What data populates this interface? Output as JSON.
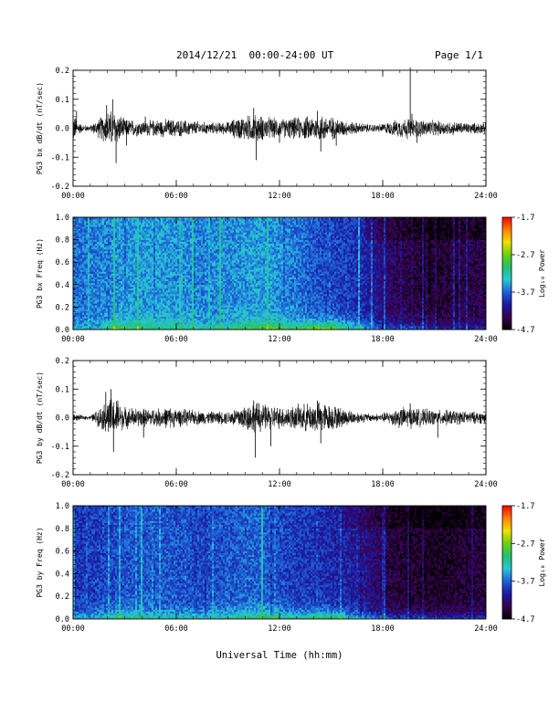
{
  "header": {
    "title": "2014/12/21  00:00-24:00 UT",
    "page": "Page 1/1"
  },
  "colors": {
    "background": "#ffffff",
    "trace": "#000000",
    "colormap": [
      "#000000",
      "#3a0050",
      "#1a1aa0",
      "#1e5fd8",
      "#28c8d8",
      "#20c070",
      "#6ad010",
      "#f0e000",
      "#ff8000",
      "#ff0000"
    ]
  },
  "x_axis": {
    "ticks": [
      0,
      6,
      12,
      18,
      24
    ],
    "tick_labels": [
      "00:00",
      "06:00",
      "12:00",
      "18:00",
      "24:00"
    ],
    "label": "Universal Time (hh:mm)"
  },
  "colorbar": {
    "tick_labels": [
      "-1.7",
      "-2.7",
      "-3.7",
      "-4.7"
    ],
    "tick_values": [
      -1.7,
      -2.7,
      -3.7,
      -4.7
    ],
    "range": [
      -4.7,
      -1.7
    ],
    "label": "Log₁₀ Power"
  },
  "chart_data": [
    {
      "type": "line",
      "ylabel": "PG3 bx dB/dt (nT/sec)",
      "ylim": [
        -0.2,
        0.2
      ],
      "yticks": [
        -0.2,
        -0.1,
        0.0,
        0.1,
        0.2
      ],
      "ytick_labels": [
        "-0.2",
        "-0.1",
        "0.0",
        "0.1",
        "0.2"
      ],
      "xlim": [
        0,
        24
      ],
      "envelope": {
        "hours": [
          0,
          0.5,
          1.0,
          1.9,
          2.1,
          2.5,
          3.0,
          4.0,
          5.0,
          5.5,
          6.0,
          7.0,
          8.0,
          9.0,
          9.5,
          10.5,
          11.0,
          12.0,
          13.0,
          14.0,
          14.5,
          15.5,
          16.0,
          17.0,
          17.5,
          18.0,
          19.0,
          19.5,
          20.0,
          21.0,
          22.0,
          23.0,
          24.0
        ],
        "amplitude": [
          0.045,
          0.012,
          0.01,
          0.05,
          0.06,
          0.055,
          0.03,
          0.025,
          0.028,
          0.03,
          0.028,
          0.025,
          0.018,
          0.02,
          0.035,
          0.045,
          0.04,
          0.03,
          0.035,
          0.04,
          0.045,
          0.03,
          0.022,
          0.015,
          0.012,
          0.015,
          0.03,
          0.035,
          0.03,
          0.025,
          0.022,
          0.018,
          0.018
        ]
      },
      "spikes": [
        {
          "hour": 0.2,
          "value": 0.06
        },
        {
          "hour": 1.95,
          "value": 0.08
        },
        {
          "hour": 2.3,
          "value": 0.1
        },
        {
          "hour": 2.5,
          "value": -0.12
        },
        {
          "hour": 3.1,
          "value": -0.06
        },
        {
          "hour": 4.2,
          "value": 0.04
        },
        {
          "hour": 10.5,
          "value": 0.07
        },
        {
          "hour": 10.65,
          "value": -0.11
        },
        {
          "hour": 12.0,
          "value": -0.05
        },
        {
          "hour": 14.2,
          "value": 0.06
        },
        {
          "hour": 14.4,
          "value": -0.08
        },
        {
          "hour": 15.3,
          "value": -0.06
        },
        {
          "hour": 19.6,
          "value": 0.21
        },
        {
          "hour": 20.0,
          "value": -0.05
        },
        {
          "hour": 19.7,
          "value": 0.05
        }
      ]
    },
    {
      "type": "heatmap",
      "ylabel": "PG3 bx Freq (Hz)",
      "ylim": [
        0.0,
        1.0
      ],
      "yticks": [
        0.0,
        0.2,
        0.4,
        0.6,
        0.8,
        1.0
      ],
      "ytick_labels": [
        "0.0",
        "0.2",
        "0.4",
        "0.6",
        "0.8",
        "1.0"
      ],
      "xlim": [
        0,
        24
      ],
      "zlim": [
        -4.7,
        -1.7
      ],
      "hourly_mean_log_power": [
        -3.65,
        -3.6,
        -3.55,
        -3.5,
        -3.5,
        -3.52,
        -3.55,
        -3.6,
        -3.55,
        -3.55,
        -3.5,
        -3.5,
        -3.6,
        -3.7,
        -3.8,
        -3.85,
        -3.9,
        -4.1,
        -4.3,
        -4.4,
        -4.5,
        -4.5,
        -4.45,
        -4.4
      ],
      "low_freq_enhancement": [
        0.2,
        0.15,
        0.55,
        0.45,
        0.35,
        0.35,
        0.35,
        0.3,
        0.3,
        0.4,
        0.5,
        0.55,
        0.5,
        0.65,
        0.85,
        0.75,
        0.45,
        0.35,
        0.35,
        0.45,
        0.45,
        0.35,
        0.3,
        0.3
      ]
    },
    {
      "type": "line",
      "ylabel": "PG3 by dB/dt (nT/sec)",
      "ylim": [
        -0.2,
        0.2
      ],
      "yticks": [
        -0.2,
        -0.1,
        0.0,
        0.1,
        0.2
      ],
      "ytick_labels": [
        "-0.2",
        "-0.1",
        "0.0",
        "0.1",
        "0.2"
      ],
      "xlim": [
        0,
        24
      ],
      "envelope": {
        "hours": [
          0,
          0.5,
          1.0,
          1.9,
          2.1,
          2.5,
          3.0,
          4.0,
          5.0,
          5.5,
          6.0,
          7.0,
          8.0,
          9.0,
          9.5,
          10.5,
          11.0,
          12.0,
          13.0,
          14.0,
          14.5,
          15.5,
          16.0,
          17.0,
          17.5,
          18.0,
          19.0,
          19.5,
          20.0,
          21.0,
          22.0,
          23.0,
          24.0
        ],
        "amplitude": [
          0.012,
          0.008,
          0.006,
          0.05,
          0.065,
          0.06,
          0.035,
          0.03,
          0.03,
          0.035,
          0.03,
          0.025,
          0.02,
          0.022,
          0.035,
          0.05,
          0.045,
          0.035,
          0.04,
          0.05,
          0.05,
          0.035,
          0.025,
          0.015,
          0.012,
          0.015,
          0.035,
          0.035,
          0.03,
          0.025,
          0.025,
          0.02,
          0.02
        ]
      },
      "spikes": [
        {
          "hour": 1.9,
          "value": 0.09
        },
        {
          "hour": 2.2,
          "value": 0.1
        },
        {
          "hour": 2.35,
          "value": -0.12
        },
        {
          "hour": 2.6,
          "value": 0.06
        },
        {
          "hour": 4.1,
          "value": -0.07
        },
        {
          "hour": 10.5,
          "value": 0.06
        },
        {
          "hour": 10.6,
          "value": -0.14
        },
        {
          "hour": 10.8,
          "value": 0.05
        },
        {
          "hour": 11.5,
          "value": -0.1
        },
        {
          "hour": 14.2,
          "value": 0.06
        },
        {
          "hour": 14.4,
          "value": -0.09
        },
        {
          "hour": 19.6,
          "value": 0.05
        },
        {
          "hour": 21.2,
          "value": -0.07
        }
      ]
    },
    {
      "type": "heatmap",
      "ylabel": "PG3 by Freq (Hz)",
      "ylim": [
        0.0,
        1.0
      ],
      "yticks": [
        0.0,
        0.2,
        0.4,
        0.6,
        0.8,
        1.0
      ],
      "ytick_labels": [
        "0.0",
        "0.2",
        "0.4",
        "0.6",
        "0.8",
        "1.0"
      ],
      "xlim": [
        0,
        24
      ],
      "zlim": [
        -4.7,
        -1.7
      ],
      "hourly_mean_log_power": [
        -3.9,
        -3.85,
        -3.8,
        -3.75,
        -3.75,
        -3.75,
        -3.8,
        -3.8,
        -3.8,
        -3.75,
        -3.7,
        -3.75,
        -3.85,
        -3.9,
        -3.95,
        -4.0,
        -4.05,
        -4.25,
        -4.45,
        -4.5,
        -4.55,
        -4.55,
        -4.5,
        -4.45
      ],
      "low_freq_enhancement": [
        0.35,
        0.35,
        0.55,
        0.45,
        0.4,
        0.4,
        0.45,
        0.4,
        0.45,
        0.5,
        0.55,
        0.6,
        0.55,
        0.65,
        0.8,
        0.75,
        0.5,
        0.45,
        0.45,
        0.5,
        0.5,
        0.45,
        0.4,
        0.4
      ]
    }
  ]
}
